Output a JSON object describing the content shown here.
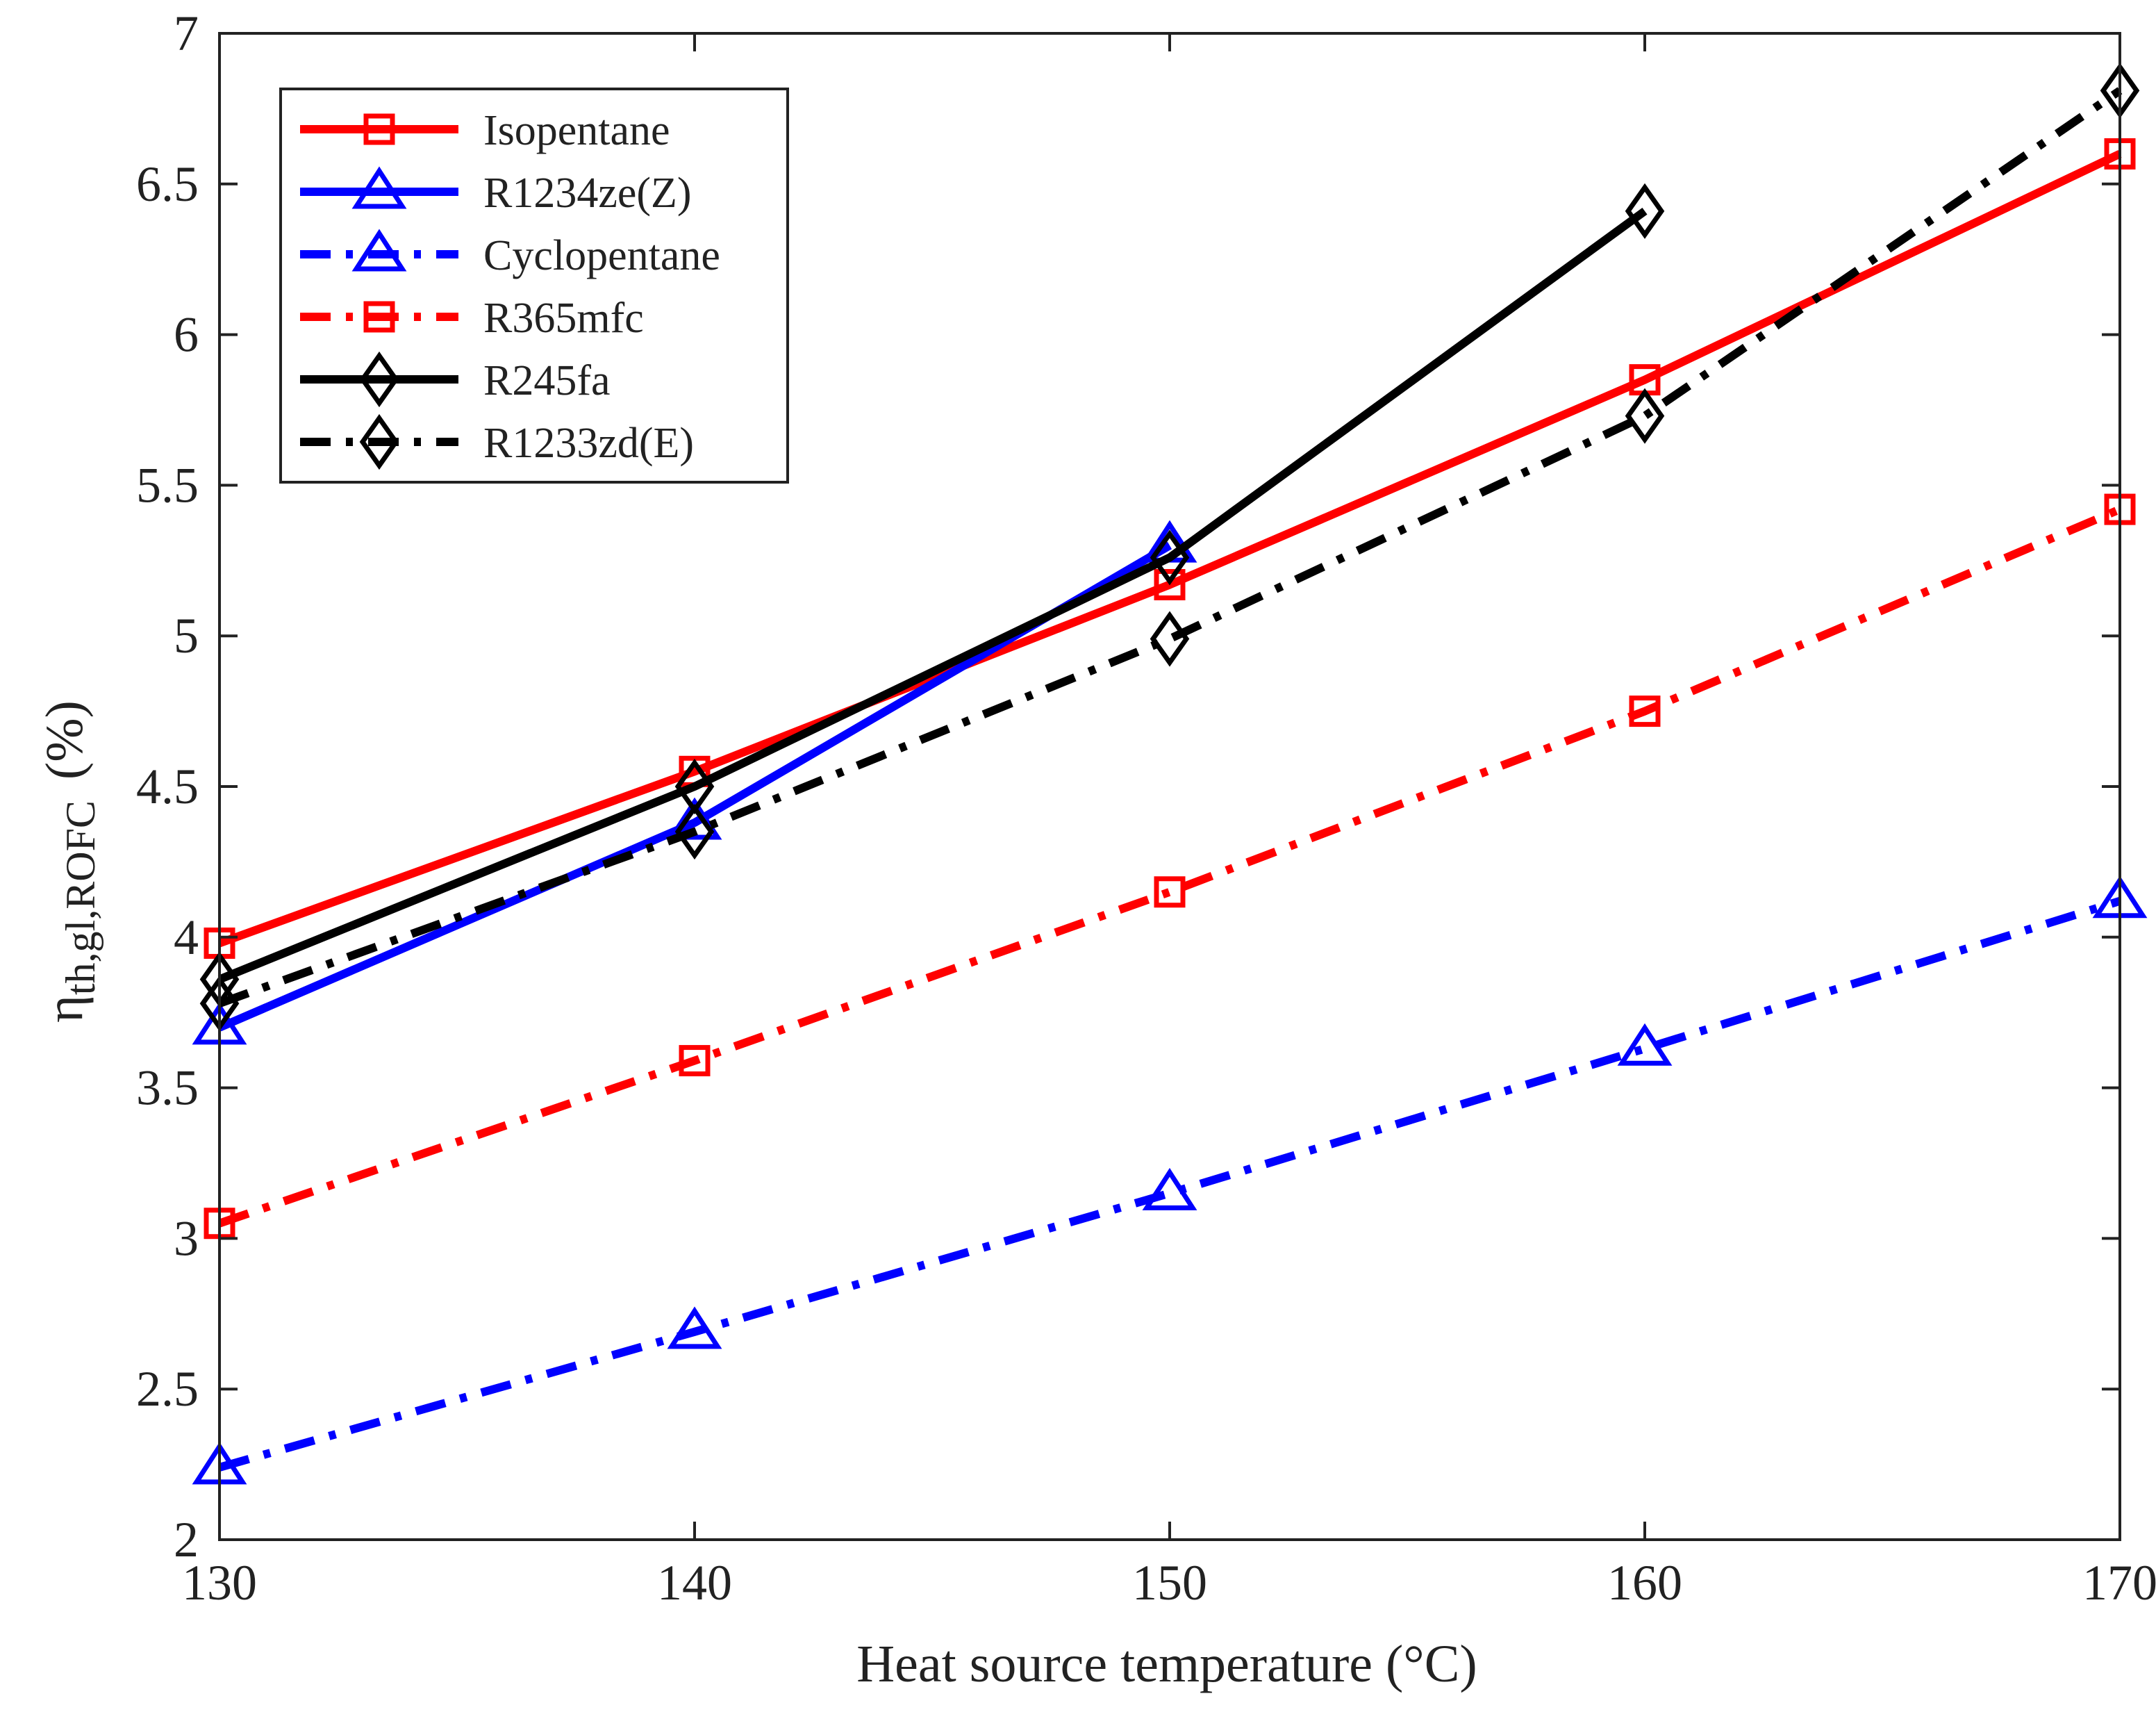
{
  "chart_data": {
    "type": "line",
    "xlabel": "Heat source temperature (°C)",
    "ylabel_main": "η",
    "ylabel_sub": "th,gl,ROFC",
    "ylabel_unit": "(%)",
    "xlim": [
      130,
      170
    ],
    "ylim": [
      2,
      7
    ],
    "x_ticks": [
      130,
      140,
      150,
      160,
      170
    ],
    "y_ticks": [
      2,
      2.5,
      3,
      3.5,
      4,
      4.5,
      5,
      5.5,
      6,
      6.5,
      7
    ],
    "x_tick_labels": [
      "130",
      "140",
      "150",
      "160",
      "170"
    ],
    "y_tick_labels": [
      "2",
      "2.5",
      "3",
      "3.5",
      "4",
      "4.5",
      "5",
      "5.5",
      "6",
      "6.5",
      "7"
    ],
    "grid": false,
    "legend_position": "top-left",
    "x": [
      130,
      140,
      150,
      160,
      170
    ],
    "series": [
      {
        "name": "Isopentane",
        "color": "#ff0000",
        "dash": "solid",
        "marker": "square",
        "x": [
          130,
          140,
          150,
          160,
          170
        ],
        "values": [
          3.98,
          4.55,
          5.17,
          5.85,
          6.6
        ]
      },
      {
        "name": "R1234ze(Z)",
        "color": "#0000ff",
        "dash": "solid",
        "marker": "triangle",
        "x": [
          130,
          140,
          150
        ],
        "values": [
          3.7,
          4.38,
          5.3
        ]
      },
      {
        "name": "Cyclopentane",
        "color": "#0000ff",
        "dash": "dashdot",
        "marker": "triangle",
        "x": [
          130,
          140,
          150,
          160,
          170
        ],
        "values": [
          2.24,
          2.69,
          3.15,
          3.63,
          4.12
        ]
      },
      {
        "name": "R365mfc",
        "color": "#ff0000",
        "dash": "dashdot",
        "marker": "square",
        "x": [
          130,
          140,
          150,
          160,
          170
        ],
        "values": [
          3.05,
          3.59,
          4.15,
          4.75,
          5.42
        ]
      },
      {
        "name": "R245fa",
        "color": "#000000",
        "dash": "solid",
        "marker": "diamond",
        "x": [
          130,
          140,
          150,
          160
        ],
        "values": [
          3.86,
          4.5,
          5.26,
          6.41
        ]
      },
      {
        "name": "R1233zd(E)",
        "color": "#000000",
        "dash": "dashdot",
        "marker": "diamond",
        "x": [
          130,
          140,
          150,
          160,
          170
        ],
        "values": [
          3.78,
          4.35,
          4.99,
          5.73,
          6.81
        ]
      }
    ]
  }
}
